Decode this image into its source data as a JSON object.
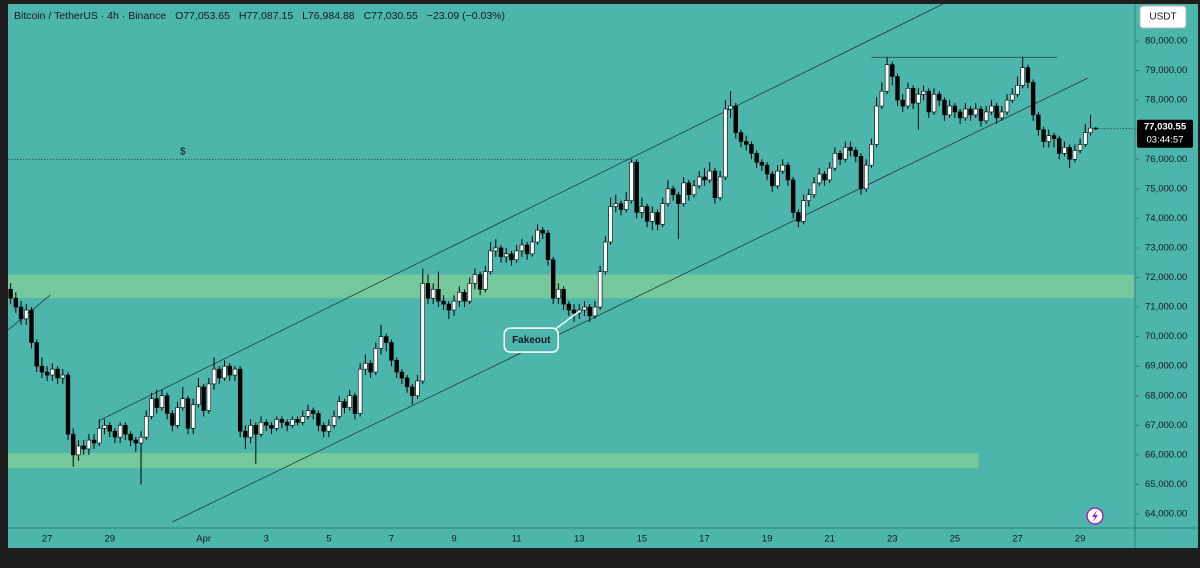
{
  "chart_data": {
    "type": "candlestick",
    "symbol": "Bitcoin / TetherUS · 4h · Binance",
    "ohlc_labels": [
      "O77,053.65",
      "H77,087.15",
      "L76,984.88",
      "C77,030.55"
    ],
    "change_label": "−23.09 (−0.03%)",
    "currency": "USDT",
    "price_label": "77,030.55",
    "countdown": "03:44:57",
    "background": "#4db6ac",
    "up_color": "#ffffff",
    "down_color": "#000000",
    "zone_color": "#7ccb98",
    "categories": [
      null,
      null,
      null,
      null,
      null,
      null,
      null,
      "27",
      null,
      null,
      null,
      null,
      null,
      null,
      null,
      null,
      null,
      null,
      null,
      "29",
      null,
      null,
      null,
      null,
      null,
      null,
      null,
      null,
      null,
      null,
      null,
      null,
      null,
      null,
      null,
      null,
      null,
      "Apr",
      null,
      null,
      null,
      null,
      null,
      null,
      null,
      null,
      null,
      null,
      null,
      "3",
      null,
      null,
      null,
      null,
      null,
      null,
      null,
      null,
      null,
      null,
      null,
      "5",
      null,
      null,
      null,
      null,
      null,
      null,
      null,
      null,
      null,
      null,
      null,
      "7",
      null,
      null,
      null,
      null,
      null,
      null,
      null,
      null,
      null,
      null,
      null,
      "9",
      null,
      null,
      null,
      null,
      null,
      null,
      null,
      null,
      null,
      null,
      null,
      "11",
      null,
      null,
      null,
      null,
      null,
      null,
      null,
      null,
      null,
      null,
      null,
      "13",
      null,
      null,
      null,
      null,
      null,
      null,
      null,
      null,
      null,
      null,
      null,
      "15",
      null,
      null,
      null,
      null,
      null,
      null,
      null,
      null,
      null,
      null,
      null,
      "17",
      null,
      null,
      null,
      null,
      null,
      null,
      null,
      null,
      null,
      null,
      null,
      "19",
      null,
      null,
      null,
      null,
      null,
      null,
      null,
      null,
      null,
      null,
      null,
      "21",
      null,
      null,
      null,
      null,
      null,
      null,
      null,
      null,
      null,
      null,
      null,
      "23",
      null,
      null,
      null,
      null,
      null,
      null,
      null,
      null,
      null,
      null,
      null,
      "25",
      null,
      null,
      null,
      null,
      null,
      null,
      null,
      null,
      null,
      null,
      null,
      "27",
      null,
      null,
      null,
      null,
      null,
      null,
      null,
      null,
      null,
      null,
      null,
      "29",
      null,
      null,
      null
    ],
    "open": [
      71600,
      71300,
      71000,
      70600,
      70900,
      69800,
      69000,
      68800,
      68700,
      68900,
      68600,
      68700,
      66700,
      66000,
      66300,
      66200,
      66500,
      66400,
      66900,
      67000,
      66800,
      66600,
      67000,
      66700,
      66500,
      66400,
      66600,
      67300,
      67900,
      67600,
      68000,
      67400,
      67000,
      67600,
      67900,
      66900,
      67700,
      68300,
      67500,
      68400,
      68900,
      68600,
      69000,
      68700,
      68900,
      66800,
      66600,
      67000,
      66700,
      67100,
      67000,
      66900,
      67200,
      67100,
      67000,
      67200,
      67100,
      67300,
      67500,
      67400,
      67000,
      66800,
      67000,
      67300,
      67800,
      67600,
      68000,
      67400,
      68900,
      69100,
      68800,
      69600,
      70000,
      69800,
      69200,
      68800,
      68600,
      68300,
      68000,
      68500,
      71800,
      71300,
      71600,
      71200,
      71100,
      70900,
      71200,
      71500,
      71200,
      71800,
      72100,
      71600,
      72200,
      72900,
      73000,
      72700,
      72800,
      72600,
      72900,
      73100,
      72800,
      73200,
      73600,
      73500,
      72600,
      71300,
      71600,
      71100,
      70900,
      70800,
      70900,
      71000,
      70700,
      71000,
      72200,
      73200,
      74400,
      74500,
      74300,
      74600,
      75900,
      74200,
      74400,
      73900,
      74200,
      73800,
      74500,
      75000,
      74800,
      74500,
      75200,
      74800,
      75100,
      75400,
      75300,
      75600,
      74700,
      75400,
      77700,
      77800,
      76900,
      76600,
      76500,
      76200,
      75900,
      75800,
      75500,
      75100,
      75600,
      75800,
      75300,
      74200,
      73900,
      74600,
      74800,
      75200,
      75500,
      75300,
      75700,
      76200,
      76000,
      76400,
      76300,
      76100,
      75000,
      75800,
      76500,
      77800,
      78300,
      79200,
      78800,
      78000,
      77800,
      78400,
      77900,
      78200,
      78300,
      77600,
      78200,
      78000,
      77500,
      77800,
      77600,
      77400,
      77700,
      77500,
      77700,
      77300,
      77600,
      77800,
      77400,
      77600,
      78000,
      78200,
      78500,
      79100,
      78600,
      77500,
      77000,
      76600,
      76800,
      76700,
      76200,
      76400,
      76000,
      76300,
      76500,
      76900,
      77053.65
    ],
    "high": [
      71800,
      71500,
      71200,
      71100,
      71000,
      69900,
      69300,
      69000,
      69100,
      69000,
      68900,
      68800,
      66900,
      66500,
      66500,
      66700,
      66700,
      67200,
      67200,
      67100,
      66900,
      67100,
      67100,
      66800,
      66600,
      66800,
      67500,
      68100,
      68200,
      68200,
      68100,
      67500,
      67800,
      68300,
      68000,
      67900,
      68600,
      68400,
      68600,
      69300,
      69000,
      69200,
      69100,
      69000,
      69000,
      67000,
      67200,
      67100,
      67300,
      67200,
      67100,
      67300,
      67300,
      67200,
      67300,
      67300,
      67500,
      67700,
      67600,
      67500,
      67100,
      67200,
      67500,
      68000,
      67900,
      68200,
      68100,
      69100,
      69400,
      69200,
      69800,
      70400,
      70100,
      69900,
      69300,
      68900,
      68700,
      68400,
      68700,
      72300,
      72100,
      71800,
      72200,
      71400,
      71200,
      71400,
      71700,
      71600,
      72000,
      72300,
      72200,
      72400,
      73200,
      73300,
      73100,
      73000,
      72900,
      73100,
      73300,
      73200,
      73400,
      73800,
      73700,
      73600,
      72700,
      71800,
      71700,
      71200,
      71100,
      71100,
      71200,
      71100,
      71200,
      72400,
      73400,
      74700,
      74800,
      74600,
      74900,
      76000,
      76000,
      74700,
      74500,
      74400,
      74300,
      74700,
      75300,
      75100,
      74900,
      75400,
      75300,
      75300,
      75600,
      75700,
      75900,
      75700,
      75600,
      78000,
      78300,
      77900,
      77000,
      76800,
      76600,
      76300,
      76000,
      75900,
      75600,
      75800,
      76000,
      75900,
      75400,
      74300,
      74800,
      75000,
      75400,
      75700,
      75600,
      75900,
      76400,
      76300,
      76600,
      76600,
      76400,
      76200,
      76000,
      76700,
      78100,
      78600,
      79450,
      79300,
      78900,
      78200,
      78600,
      78500,
      78400,
      78500,
      78400,
      78400,
      78300,
      78100,
      78000,
      77900,
      77700,
      77900,
      77800,
      77900,
      77800,
      77800,
      78000,
      77900,
      77800,
      78200,
      78400,
      78800,
      79450,
      79200,
      78700,
      77600,
      77100,
      77000,
      76900,
      76800,
      76600,
      76500,
      76500,
      76700,
      77200,
      77500,
      77087.15
    ],
    "low": [
      71100,
      70800,
      70400,
      70400,
      69600,
      68800,
      68600,
      68500,
      68500,
      68400,
      68400,
      66500,
      65600,
      65800,
      66000,
      66000,
      66200,
      66300,
      66700,
      66600,
      66400,
      66400,
      66500,
      66300,
      66100,
      65000,
      66500,
      67200,
      67400,
      67500,
      67200,
      66800,
      66900,
      67500,
      66700,
      66700,
      67600,
      67300,
      67400,
      68200,
      68400,
      68500,
      68500,
      68500,
      66600,
      66200,
      66400,
      65700,
      66600,
      66800,
      66700,
      66800,
      66900,
      66800,
      66900,
      67000,
      67000,
      67200,
      67200,
      66800,
      66600,
      66600,
      66900,
      67200,
      67400,
      67500,
      67200,
      67300,
      68700,
      68600,
      68700,
      69400,
      69500,
      69000,
      68600,
      68400,
      68100,
      67700,
      67900,
      68400,
      71100,
      71100,
      71000,
      70900,
      70600,
      70700,
      71000,
      71000,
      71100,
      71600,
      71400,
      71500,
      72100,
      72700,
      72500,
      72500,
      72400,
      72500,
      72700,
      72600,
      72700,
      73100,
      73300,
      72400,
      71100,
      71100,
      70900,
      70700,
      70500,
      70600,
      70700,
      70500,
      70600,
      70900,
      72100,
      73100,
      74200,
      74100,
      74200,
      74500,
      74000,
      74000,
      73700,
      73600,
      73600,
      73700,
      74400,
      74600,
      73300,
      74400,
      74600,
      74700,
      75000,
      75100,
      75200,
      74500,
      74600,
      75300,
      77400,
      76700,
      76400,
      76300,
      76000,
      75700,
      75600,
      75300,
      74900,
      75000,
      75500,
      75100,
      74000,
      73700,
      73800,
      74400,
      74700,
      75100,
      75100,
      75200,
      75600,
      75800,
      75900,
      76100,
      75900,
      74800,
      74900,
      75700,
      76400,
      77700,
      78200,
      78500,
      77800,
      77600,
      77700,
      77700,
      77000,
      78000,
      77400,
      77500,
      77800,
      77300,
      77400,
      77400,
      77200,
      77300,
      77300,
      77400,
      77100,
      77200,
      77500,
      77200,
      77300,
      77500,
      77900,
      78100,
      78400,
      78400,
      77300,
      76800,
      76400,
      76400,
      76400,
      76000,
      76100,
      75700,
      75900,
      76200,
      76400,
      76800,
      76984.88
    ],
    "close": [
      71300,
      71000,
      70600,
      70900,
      69800,
      69000,
      68800,
      68700,
      68900,
      68600,
      68700,
      66700,
      66000,
      66300,
      66200,
      66500,
      66400,
      66900,
      67000,
      66800,
      66600,
      67000,
      66700,
      66500,
      66400,
      66600,
      67300,
      67900,
      67600,
      68000,
      67400,
      67000,
      67600,
      67900,
      66900,
      67700,
      68300,
      67500,
      68400,
      68900,
      68600,
      69000,
      68700,
      68900,
      66800,
      66600,
      67000,
      66700,
      67100,
      67000,
      66900,
      67200,
      67100,
      67000,
      67200,
      67100,
      67300,
      67500,
      67400,
      67000,
      66800,
      67000,
      67300,
      67800,
      67600,
      68000,
      67400,
      68900,
      69100,
      68800,
      69600,
      70000,
      69800,
      69200,
      68800,
      68600,
      68300,
      68000,
      68500,
      71800,
      71300,
      71600,
      71200,
      71100,
      70900,
      71200,
      71500,
      71200,
      71800,
      72100,
      71600,
      72200,
      72900,
      73000,
      72700,
      72800,
      72600,
      72900,
      73100,
      72800,
      73200,
      73600,
      73500,
      72600,
      71300,
      71600,
      71100,
      70900,
      70800,
      70900,
      71000,
      70700,
      71000,
      72200,
      73200,
      74400,
      74500,
      74300,
      74600,
      75900,
      74200,
      74400,
      73900,
      74200,
      73800,
      74500,
      75000,
      74800,
      74500,
      75200,
      74800,
      75100,
      75400,
      75300,
      75600,
      74700,
      75400,
      77700,
      77800,
      76900,
      76600,
      76500,
      76200,
      75900,
      75800,
      75500,
      75100,
      75600,
      75800,
      75300,
      74200,
      73900,
      74600,
      74800,
      75200,
      75500,
      75300,
      75700,
      76200,
      76000,
      76400,
      76300,
      76100,
      75000,
      75800,
      76500,
      77800,
      78300,
      79200,
      78800,
      78000,
      77800,
      78400,
      77900,
      78200,
      78300,
      77600,
      78200,
      78000,
      77500,
      77800,
      77600,
      77400,
      77700,
      77500,
      77700,
      77300,
      77600,
      77800,
      77400,
      77600,
      78000,
      78200,
      78500,
      79100,
      78600,
      77500,
      77000,
      76600,
      76800,
      76700,
      76200,
      76400,
      76000,
      76300,
      76500,
      76900,
      77053.65,
      77030.55
    ],
    "ylim": [
      63526,
      81387
    ],
    "yticks": [
      {
        "value": 64000,
        "label": "64,000.00"
      },
      {
        "value": 65000,
        "label": "65,000.00"
      },
      {
        "value": 66000,
        "label": "66,000.00"
      },
      {
        "value": 67000,
        "label": "67,000.00"
      },
      {
        "value": 68000,
        "label": "68,000.00"
      },
      {
        "value": 69000,
        "label": "69,000.00"
      },
      {
        "value": 70000,
        "label": "70,000.00"
      },
      {
        "value": 71000,
        "label": "71,000.00"
      },
      {
        "value": 72000,
        "label": "72,000.00"
      },
      {
        "value": 73000,
        "label": "73,000.00"
      },
      {
        "value": 74000,
        "label": "74,000.00"
      },
      {
        "value": 75000,
        "label": "75,000.00"
      },
      {
        "value": 76000,
        "label": "76,000.00"
      },
      {
        "value": 77000,
        "label": "77,000.00"
      },
      {
        "value": 78000,
        "label": "78,000.00"
      },
      {
        "value": 79000,
        "label": "79,000.00"
      },
      {
        "value": 80000,
        "label": "80,000.00"
      }
    ],
    "grid": false,
    "zones": [
      {
        "from": 71300,
        "to": 72100,
        "x": [
          0,
          208
        ]
      },
      {
        "from": 65550,
        "to": 66060,
        "x": [
          0,
          185.5
        ]
      }
    ],
    "drawings": [
      {
        "style": "solid",
        "points": [
          [
            17.2,
            67179
          ],
          [
            179.1,
            81286
          ]
        ]
      },
      {
        "style": "solid",
        "points": [
          [
            31,
            63728
          ],
          [
            206.5,
            78748
          ]
        ]
      },
      {
        "style": "solid",
        "points": [
          [
            0,
            70223
          ],
          [
            7.6,
            71407
          ]
        ]
      },
      {
        "style": "dotted",
        "points": [
          [
            0,
            76000
          ],
          [
            118.7,
            76000
          ]
        ]
      },
      {
        "style": "solid",
        "points": [
          [
            165,
            79450
          ],
          [
            200.6,
            79450
          ]
        ]
      }
    ],
    "annotations": [
      {
        "text": "$",
        "x": 33,
        "y": 76250
      },
      {
        "text": "Fakeout",
        "x": 99.8,
        "y": 69880,
        "arrow_to": [
          108.8,
          70830
        ]
      }
    ]
  }
}
